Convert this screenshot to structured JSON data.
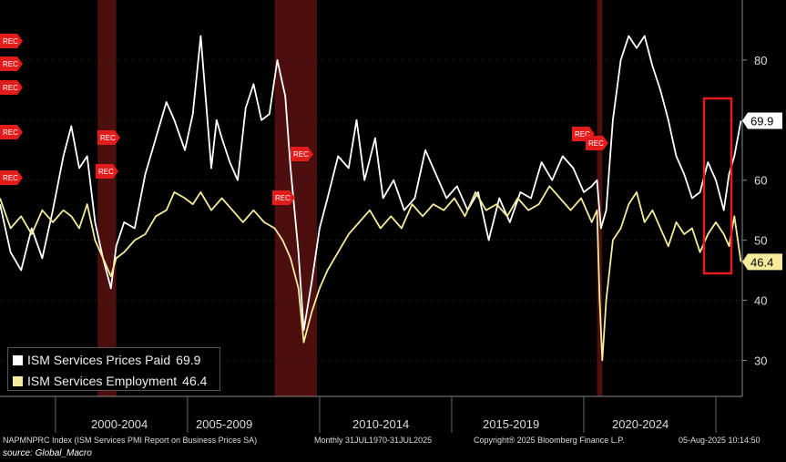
{
  "chart_data": {
    "type": "line",
    "title": "",
    "ylim": [
      24,
      90
    ],
    "yticks": [
      30,
      40,
      50,
      60,
      70,
      80
    ],
    "x_range": [
      1997.5,
      2025.6
    ],
    "period_labels": [
      "2000-2004",
      "2005-2009",
      "2010-2014",
      "2015-2019",
      "2020-2024"
    ],
    "period_boundaries": [
      1999.6,
      2004.6,
      2009.6,
      2014.6,
      2019.6,
      2024.6
    ],
    "recessions": [
      [
        2001.2,
        2001.9
      ],
      [
        2007.9,
        2009.5
      ],
      [
        2020.1,
        2020.3
      ]
    ],
    "rec_label": "REC",
    "series": [
      {
        "name": "ISM Services Prices Paid",
        "color": "#ffffff",
        "last_value": "69.9",
        "x": [
          1997.5,
          1997.9,
          1998.3,
          1998.7,
          1999.1,
          1999.5,
          1999.9,
          2000.2,
          2000.5,
          2000.8,
          2001.1,
          2001.4,
          2001.7,
          2001.9,
          2002.2,
          2002.6,
          2003.0,
          2003.4,
          2003.8,
          2004.1,
          2004.5,
          2004.8,
          2005.1,
          2005.5,
          2005.7,
          2005.9,
          2006.2,
          2006.5,
          2006.8,
          2007.1,
          2007.4,
          2007.7,
          2008.0,
          2008.3,
          2008.5,
          2008.8,
          2009.0,
          2009.3,
          2009.6,
          2009.9,
          2010.3,
          2010.7,
          2011.0,
          2011.3,
          2011.7,
          2012.0,
          2012.4,
          2012.8,
          2013.2,
          2013.6,
          2014.0,
          2014.4,
          2014.8,
          2015.2,
          2015.6,
          2016.0,
          2016.4,
          2016.8,
          2017.2,
          2017.6,
          2018.0,
          2018.4,
          2018.8,
          2019.2,
          2019.6,
          2019.9,
          2020.1,
          2020.25,
          2020.45,
          2020.7,
          2021.0,
          2021.3,
          2021.6,
          2021.9,
          2022.2,
          2022.5,
          2022.8,
          2023.1,
          2023.4,
          2023.7,
          2024.0,
          2024.3,
          2024.6,
          2024.9,
          2025.1,
          2025.3,
          2025.55
        ],
        "values": [
          56,
          48,
          45,
          52,
          47,
          55,
          64,
          69,
          62,
          64,
          53,
          47,
          42,
          49,
          53,
          52,
          61,
          67,
          73,
          70,
          65,
          71,
          84,
          62,
          70,
          67,
          63,
          60,
          72,
          76,
          70,
          71,
          80,
          74,
          62,
          48,
          35,
          43,
          52,
          57,
          64,
          62,
          70,
          60,
          67,
          57,
          60,
          55,
          57,
          65,
          61,
          57,
          59,
          55,
          58,
          50,
          57,
          53,
          58,
          57,
          63,
          60,
          64,
          62,
          58,
          59,
          60,
          52,
          55,
          70,
          80,
          84,
          82,
          84,
          79,
          75,
          70,
          64,
          61,
          57,
          58,
          63,
          60,
          55,
          61,
          64,
          69.9
        ]
      },
      {
        "name": "ISM Services Employment",
        "color": "#f5eb9c",
        "last_value": "46.4",
        "x": [
          1997.5,
          1997.9,
          1998.3,
          1998.7,
          1999.1,
          1999.5,
          1999.9,
          2000.2,
          2000.5,
          2000.8,
          2001.1,
          2001.4,
          2001.7,
          2001.9,
          2002.2,
          2002.6,
          2003.0,
          2003.4,
          2003.8,
          2004.1,
          2004.5,
          2004.8,
          2005.1,
          2005.5,
          2005.9,
          2006.3,
          2006.7,
          2007.1,
          2007.5,
          2007.9,
          2008.2,
          2008.5,
          2008.8,
          2009.0,
          2009.3,
          2009.6,
          2009.9,
          2010.3,
          2010.7,
          2011.1,
          2011.5,
          2011.9,
          2012.3,
          2012.7,
          2013.1,
          2013.5,
          2013.9,
          2014.3,
          2014.7,
          2015.1,
          2015.5,
          2015.9,
          2016.3,
          2016.7,
          2017.1,
          2017.5,
          2017.9,
          2018.3,
          2018.7,
          2019.1,
          2019.5,
          2019.9,
          2020.1,
          2020.2,
          2020.3,
          2020.45,
          2020.7,
          2021.0,
          2021.3,
          2021.6,
          2021.9,
          2022.2,
          2022.5,
          2022.8,
          2023.1,
          2023.4,
          2023.7,
          2024.0,
          2024.3,
          2024.6,
          2024.9,
          2025.1,
          2025.3,
          2025.55
        ],
        "values": [
          57,
          52,
          54,
          51,
          55,
          53,
          55,
          54,
          52,
          56,
          50,
          47,
          44,
          47,
          48,
          50,
          51,
          54,
          55,
          58,
          57,
          56,
          58,
          55,
          57,
          55,
          53,
          55,
          53,
          52,
          50,
          47,
          42,
          33,
          38,
          42,
          45,
          48,
          51,
          53,
          55,
          52,
          54,
          52,
          56,
          54,
          56,
          55,
          57,
          54,
          58,
          55,
          56,
          54,
          57,
          55,
          56,
          59,
          57,
          55,
          57,
          53,
          55,
          40,
          30,
          40,
          50,
          52,
          56,
          58,
          53,
          55,
          52,
          49,
          53,
          51,
          52,
          48,
          51,
          53,
          51,
          49,
          54,
          46.4
        ]
      }
    ]
  },
  "legend": {
    "prices_paid": {
      "label": "ISM Services Prices Paid",
      "value": "69.9"
    },
    "employment": {
      "label": "ISM Services Employment",
      "value": "46.4"
    }
  },
  "footer": {
    "index_desc": "NAPMNPRC Index (ISM Services PMI Report on Business Prices SA)",
    "range": "Monthly 31JUL1970-31JUL2025",
    "copyright": "Copyright® 2025 Bloomberg Finance L.P.",
    "timestamp": "05-Aug-2025 10:14:50",
    "source": "source: Global_Macro"
  },
  "colors": {
    "prices": "#ffffff",
    "employment": "#f5eb9c",
    "highlight": "#e31c1c",
    "recession": "#5a1212"
  }
}
